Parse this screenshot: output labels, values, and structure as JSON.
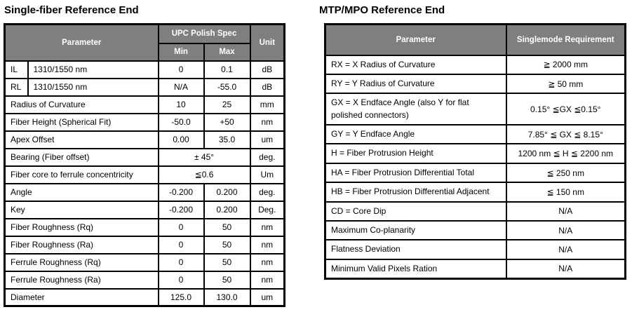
{
  "left": {
    "title": "Single-fiber Reference End",
    "header": {
      "parameter": "Parameter",
      "spec": "UPC Polish Spec",
      "min": "Min",
      "max": "Max",
      "unit": "Unit"
    },
    "rows": [
      {
        "code": "IL",
        "param": "1310/1550 nm",
        "min": "0",
        "max": "0.1",
        "unit": "dB"
      },
      {
        "code": "RL",
        "param": "1310/1550 nm",
        "min": "N/A",
        "max": "-55.0",
        "unit": "dB"
      },
      {
        "param": "Radius of Curvature",
        "min": "10",
        "max": "25",
        "unit": "mm"
      },
      {
        "param": "Fiber Height (Spherical Fit)",
        "min": "-50.0",
        "max": "+50",
        "unit": "nm"
      },
      {
        "param": "Apex Offset",
        "min": "0.00",
        "max": "35.0",
        "unit": "um"
      },
      {
        "param": "Bearing (Fiber offset)",
        "merged": "± 45°",
        "unit": "deg."
      },
      {
        "param": "Fiber core to ferrule concentricity",
        "merged": "≦0.6",
        "unit": "Um"
      },
      {
        "param": "Angle",
        "min": "-0.200",
        "max": "0.200",
        "unit": "deg."
      },
      {
        "param": "Key",
        "min": "-0.200",
        "max": "0.200",
        "unit": "Deg."
      },
      {
        "param": "Fiber Roughness (Rq)",
        "min": "0",
        "max": "50",
        "unit": "nm"
      },
      {
        "param": "Fiber Roughness (Ra)",
        "min": "0",
        "max": "50",
        "unit": "nm"
      },
      {
        "param": "Ferrule Roughness (Rq)",
        "min": "0",
        "max": "50",
        "unit": "nm"
      },
      {
        "param": "Ferrule Roughness (Ra)",
        "min": "0",
        "max": "50",
        "unit": "nm"
      },
      {
        "param": "Diameter",
        "min": "125.0",
        "max": "130.0",
        "unit": "um"
      }
    ]
  },
  "right": {
    "title": "MTP/MPO Reference End",
    "header": {
      "parameter": "Parameter",
      "requirement": "Singlemode Requirement"
    },
    "rows": [
      {
        "param": "RX = X Radius of Curvature",
        "req": "≧ 2000 mm"
      },
      {
        "param": "RY = Y Radius of Curvature",
        "req": "≧ 50 mm"
      },
      {
        "param": "GX = X Endface Angle (also Y for flat polished connectors)",
        "req": "0.15° ≦GX ≦0.15°"
      },
      {
        "param": "GY = Y Endface Angle",
        "req": "7.85° ≦ GX ≦ 8.15°"
      },
      {
        "param": "H = Fiber Protrusion Height",
        "req": "1200 nm ≦ H ≦ 2200 nm"
      },
      {
        "param": "HA = Fiber Protrusion Differential Total",
        "req": "≦ 250 nm"
      },
      {
        "param": "HB = Fiber Protrusion Differential Adjacent",
        "req": "≦ 150 nm"
      },
      {
        "param": "CD = Core Dip",
        "req": "N/A"
      },
      {
        "param": "Maximum Co-planarity",
        "req": "N/A"
      },
      {
        "param": "Flatness Deviation",
        "req": "N/A"
      },
      {
        "param": "Minimum Valid Pixels Ration",
        "req": "N/A"
      }
    ]
  },
  "colors": {
    "header_bg": "#7f7f7f",
    "header_text": "#ffffff",
    "border": "#000000",
    "body_bg": "#ffffff",
    "body_text": "#000000"
  }
}
